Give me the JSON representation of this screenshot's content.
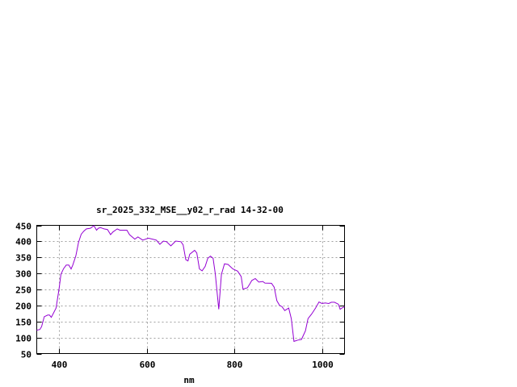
{
  "chart_data": {
    "type": "line",
    "title": "sr_2025_332_MSE__y02_r_rad 14-32-00",
    "xlabel": "nm",
    "ylabel": "",
    "xlim": [
      350,
      1050
    ],
    "ylim": [
      50,
      450
    ],
    "xticks": [
      400,
      600,
      800,
      1000
    ],
    "yticks": [
      50,
      100,
      150,
      200,
      250,
      300,
      350,
      400,
      450
    ],
    "grid": true,
    "legend": "none",
    "series": [
      {
        "color": "#9400d3",
        "x": [
          350,
          357,
          361,
          367,
          375,
          379,
          383,
          388,
          394,
          401,
          405,
          411,
          417,
          423,
          428,
          432,
          439,
          445,
          451,
          457,
          463,
          472,
          480,
          486,
          490,
          495,
          503,
          511,
          518,
          523,
          533,
          539,
          555,
          561,
          573,
          580,
          591,
          604,
          616,
          622,
          630,
          638,
          645,
          655,
          666,
          678,
          683,
          689,
          694,
          698,
          709,
          714,
          720,
          726,
          733,
          739,
          745,
          751,
          756,
          764,
          770,
          777,
          785,
          796,
          807,
          815,
          819,
          829,
          835,
          839,
          847,
          855,
          864,
          869,
          884,
          890,
          896,
          902,
          908,
          914,
          923,
          929,
          935,
          944,
          952,
          961,
          967,
          975,
          984,
          992,
          999,
          1006,
          1014,
          1020,
          1027,
          1036,
          1040,
          1044,
          1050
        ],
        "y": [
          123,
          125,
          134,
          165,
          170,
          170,
          163,
          176,
          192,
          255,
          297,
          315,
          326,
          326,
          314,
          326,
          355,
          397,
          422,
          432,
          439,
          441,
          449,
          435,
          441,
          443,
          439,
          437,
          421,
          429,
          439,
          435,
          435,
          421,
          407,
          414,
          404,
          410,
          406,
          404,
          391,
          401,
          399,
          386,
          401,
          399,
          389,
          343,
          339,
          360,
          372,
          364,
          314,
          308,
          322,
          347,
          354,
          347,
          299,
          188,
          297,
          330,
          328,
          314,
          307,
          290,
          251,
          255,
          268,
          278,
          284,
          273,
          275,
          270,
          269,
          257,
          215,
          201,
          196,
          184,
          192,
          159,
          88,
          92,
          94,
          121,
          159,
          173,
          192,
          211,
          206,
          208,
          206,
          210,
          210,
          204,
          188,
          192,
          196
        ]
      }
    ]
  }
}
